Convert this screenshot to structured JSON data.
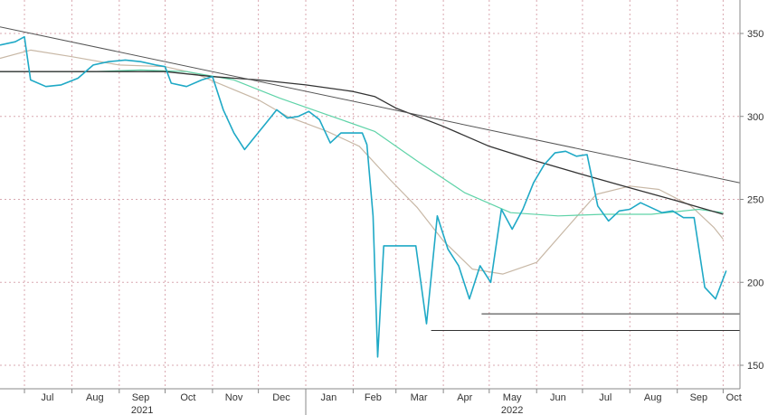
{
  "chart_data": {
    "type": "line",
    "title": "",
    "xlabel": "",
    "ylabel": "",
    "ylim": [
      140,
      370
    ],
    "y_ticks": [
      "150",
      "200",
      "250",
      "300",
      "350"
    ],
    "month_labels": [
      "Jul",
      "Aug",
      "Sep",
      "Oct",
      "Nov",
      "Dec",
      "Jan",
      "Feb",
      "Mar",
      "Apr",
      "May",
      "Jun",
      "Jul",
      "Aug",
      "Sep",
      "Oct"
    ],
    "year_labels": [
      "2021",
      "2022"
    ],
    "grid": true,
    "colors": {
      "price": "#1fa9c6",
      "ma_short": "#c8b8a6",
      "ma_mid": "#5fd3a8",
      "ma_long": "#333333",
      "trendline": "#555555",
      "support": "#333333",
      "grid": "#d9a8b0",
      "axis": "#888888"
    },
    "series": [
      {
        "key": "price",
        "x": [
          "2021-06-15",
          "2021-06-25",
          "2021-07-01",
          "2021-07-05",
          "2021-07-15",
          "2021-07-25",
          "2021-08-05",
          "2021-08-15",
          "2021-08-25",
          "2021-09-05",
          "2021-09-15",
          "2021-09-25",
          "2021-10-01",
          "2021-10-05",
          "2021-10-15",
          "2021-10-25",
          "2021-11-01",
          "2021-11-08",
          "2021-11-15",
          "2021-11-22",
          "2021-11-29",
          "2021-12-06",
          "2021-12-13",
          "2021-12-20",
          "2021-12-27",
          "2022-01-03",
          "2022-01-10",
          "2022-01-17",
          "2022-01-24",
          "2022-01-31",
          "2022-02-07",
          "2022-02-10",
          "2022-02-14",
          "2022-02-17",
          "2022-02-21",
          "2022-02-28",
          "2022-03-07",
          "2022-03-14",
          "2022-03-21",
          "2022-03-28",
          "2022-04-04",
          "2022-04-11",
          "2022-04-18",
          "2022-04-25",
          "2022-05-02",
          "2022-05-09",
          "2022-05-16",
          "2022-05-23",
          "2022-05-30",
          "2022-06-06",
          "2022-06-13",
          "2022-06-20",
          "2022-06-27",
          "2022-07-04",
          "2022-07-11",
          "2022-07-18",
          "2022-07-25",
          "2022-08-01",
          "2022-08-08",
          "2022-08-15",
          "2022-08-22",
          "2022-08-29",
          "2022-09-05",
          "2022-09-12",
          "2022-09-19",
          "2022-09-26",
          "2022-10-03"
        ],
        "y": [
          343,
          345,
          348,
          322,
          318,
          319,
          323,
          331,
          333,
          334,
          333,
          331,
          330,
          320,
          318,
          322,
          324,
          304,
          290,
          280,
          288,
          296,
          304,
          299,
          300,
          303,
          298,
          284,
          290,
          290,
          290,
          283,
          240,
          155,
          222,
          222,
          222,
          222,
          175,
          240,
          220,
          210,
          190,
          210,
          200,
          244,
          232,
          244,
          260,
          271,
          278,
          279,
          276,
          277,
          246,
          237,
          243,
          244,
          248,
          245,
          242,
          243,
          239,
          239,
          197,
          190,
          207
        ]
      },
      {
        "key": "ma_short",
        "x": [
          "2021-06-15",
          "2021-07-05",
          "2021-08-01",
          "2021-09-01",
          "2021-10-01",
          "2021-10-20",
          "2021-11-10",
          "2021-12-01",
          "2021-12-20",
          "2022-01-15",
          "2022-02-05",
          "2022-02-25",
          "2022-03-15",
          "2022-04-01",
          "2022-04-20",
          "2022-05-10",
          "2022-06-01",
          "2022-06-20",
          "2022-07-10",
          "2022-08-01",
          "2022-08-20",
          "2022-09-10",
          "2022-09-25",
          "2022-10-01"
        ],
        "y": [
          335,
          340,
          336,
          331,
          330,
          326,
          318,
          310,
          300,
          291,
          282,
          262,
          245,
          225,
          208,
          205,
          212,
          232,
          253,
          258,
          256,
          246,
          233,
          226
        ]
      },
      {
        "key": "ma_mid",
        "x": [
          "2021-06-15",
          "2021-07-15",
          "2021-08-15",
          "2021-09-15",
          "2021-10-15",
          "2021-11-15",
          "2021-12-15",
          "2022-01-15",
          "2022-02-15",
          "2022-03-15",
          "2022-04-15",
          "2022-05-15",
          "2022-06-15",
          "2022-07-15",
          "2022-08-15",
          "2022-09-15",
          "2022-10-01"
        ],
        "y": [
          327,
          327,
          327,
          328,
          327,
          322,
          311,
          301,
          291,
          273,
          254,
          242,
          240,
          241,
          241,
          244,
          242
        ]
      },
      {
        "key": "ma_long",
        "x": [
          "2021-06-15",
          "2021-09-01",
          "2021-10-01",
          "2021-11-01",
          "2021-12-01",
          "2022-01-01",
          "2022-02-01",
          "2022-02-15",
          "2022-03-01",
          "2022-04-01",
          "2022-05-01",
          "2022-06-01",
          "2022-07-01",
          "2022-08-01",
          "2022-09-01",
          "2022-10-01"
        ],
        "y": [
          327,
          327,
          327,
          324,
          322,
          319,
          315,
          312,
          305,
          294,
          282,
          273,
          265,
          257,
          249,
          241
        ]
      }
    ],
    "trendlines": [
      {
        "key": "trend",
        "x": [
          "2021-06-15",
          "2022-10-12"
        ],
        "y": [
          354,
          260
        ]
      },
      {
        "key": "support1",
        "x": [
          "2022-04-26",
          "2022-10-12"
        ],
        "y": [
          181,
          181
        ]
      },
      {
        "key": "support2",
        "x": [
          "2022-03-24",
          "2022-10-12"
        ],
        "y": [
          171,
          171
        ]
      }
    ]
  }
}
